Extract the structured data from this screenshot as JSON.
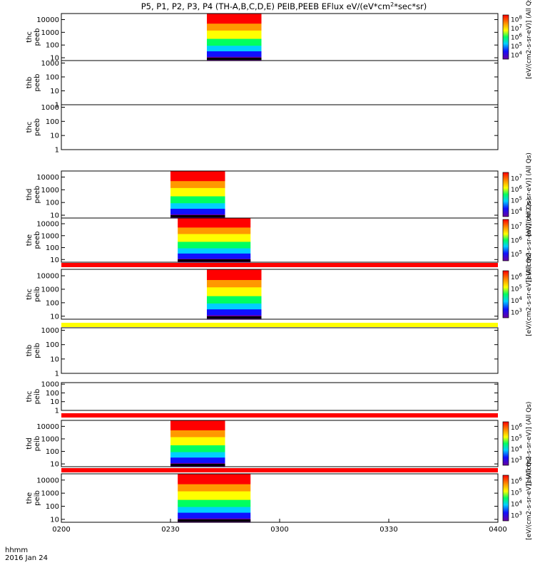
{
  "chart_data": {
    "type": "heatmap",
    "title": "P5, P1, P2, P3, P4 (TH-A,B,C,D,E) PEIB,PEEB EFlux eV/(eV*cm",
    "title_sup": "2",
    "title_tail": "*sec*sr)",
    "x_ticks": [
      "0200",
      "0230",
      "0300",
      "0330",
      "0400"
    ],
    "x_corner_label": "hhmm",
    "x_date_label": "2016 Jan 24",
    "xlim": [
      "02:00",
      "04:00"
    ],
    "panels": [
      {
        "line1": "thc",
        "line2": "peeb",
        "y_ticks": [
          "10",
          "100",
          "1000",
          "10000"
        ],
        "ylim": [
          6,
          30000
        ],
        "data_start": "02:40",
        "data_end": "02:55",
        "colorbar": {
          "ticks": [
            "10^4",
            "10^5",
            "10^6",
            "10^7",
            "10^8"
          ],
          "label": "[eV/(cm2-s-sr-eV)] (All Qs)"
        }
      },
      {
        "line1": "thb",
        "line2": "peeb",
        "y_ticks": [
          "1",
          "10",
          "100",
          "1000"
        ],
        "ylim": [
          1,
          1500
        ],
        "data_start": null,
        "data_end": null,
        "colorbar": null
      },
      {
        "line1": "thc",
        "line2": "peeb",
        "y_ticks": [
          "1",
          "10",
          "100",
          "1000"
        ],
        "ylim": [
          1,
          1500
        ],
        "data_start": null,
        "data_end": null,
        "colorbar": null
      },
      {
        "line1": "thd",
        "line2": "peeb",
        "y_ticks": [
          "10",
          "100",
          "1000",
          "10000"
        ],
        "ylim": [
          6,
          30000
        ],
        "data_start": "02:30",
        "data_end": "02:45",
        "colorbar": {
          "ticks": [
            "10^4",
            "10^5",
            "10^6",
            "10^7"
          ],
          "label": "[eV/(cm2-s-sr-eV)] (All Qs)"
        }
      },
      {
        "line1": "the",
        "line2": "peeb",
        "y_ticks": [
          "10",
          "100",
          "1000",
          "10000"
        ],
        "ylim": [
          6,
          30000
        ],
        "data_start": "02:32",
        "data_end": "02:52",
        "colorbar": {
          "ticks": [
            "10^5",
            "10^6",
            "10^7"
          ],
          "label": "[eV/(cm2-s-sr-eV)] (All Qs)"
        }
      },
      {
        "line1": "thc",
        "line2": "peib",
        "y_ticks": [
          "10",
          "100",
          "1000",
          "10000"
        ],
        "ylim": [
          6,
          30000
        ],
        "data_start": "02:40",
        "data_end": "02:55",
        "colorbar": {
          "ticks": [
            "10^3",
            "10^4",
            "10^5",
            "10^6"
          ],
          "label": "[eV/(cm2-s-sr-eV)] (All Qs)"
        }
      },
      {
        "line1": "thb",
        "line2": "peib",
        "y_ticks": [
          "1",
          "10",
          "100",
          "1000"
        ],
        "ylim": [
          1,
          1500
        ],
        "data_start": null,
        "data_end": null,
        "colorbar": null
      },
      {
        "line1": "thc",
        "line2": "peib",
        "y_ticks": [
          "1",
          "10",
          "100",
          "1000"
        ],
        "ylim": [
          1,
          1500
        ],
        "data_start": null,
        "data_end": null,
        "colorbar": null
      },
      {
        "line1": "thd",
        "line2": "peib",
        "y_ticks": [
          "10",
          "100",
          "1000",
          "10000"
        ],
        "ylim": [
          6,
          30000
        ],
        "data_start": "02:30",
        "data_end": "02:45",
        "colorbar": {
          "ticks": [
            "10^3",
            "10^4",
            "10^5",
            "10^6"
          ],
          "label": "[eV/(cm2-s-sr-eV)] (All Qs)"
        }
      },
      {
        "line1": "the",
        "line2": "peib",
        "y_ticks": [
          "10",
          "100",
          "1000",
          "10000"
        ],
        "ylim": [
          6,
          30000
        ],
        "data_start": "02:32",
        "data_end": "02:52",
        "colorbar": {
          "ticks": [
            "10^3",
            "10^4",
            "10^5",
            "10^6"
          ],
          "label": "[eV/(cm2-s-sr-eV)] (All Qs)"
        }
      }
    ],
    "status_bars": [
      {
        "after_panel": 4,
        "color": "#ff0000"
      },
      {
        "after_panel": 5,
        "color": "#ffff00"
      },
      {
        "after_panel": 7,
        "color": "#ff0000"
      },
      {
        "after_panel": 8,
        "color": "#ff0000"
      }
    ],
    "colormap": [
      "#6a00a0",
      "#1010ff",
      "#00d0ff",
      "#00ff60",
      "#ffff00",
      "#ff9900",
      "#ff0000"
    ]
  }
}
